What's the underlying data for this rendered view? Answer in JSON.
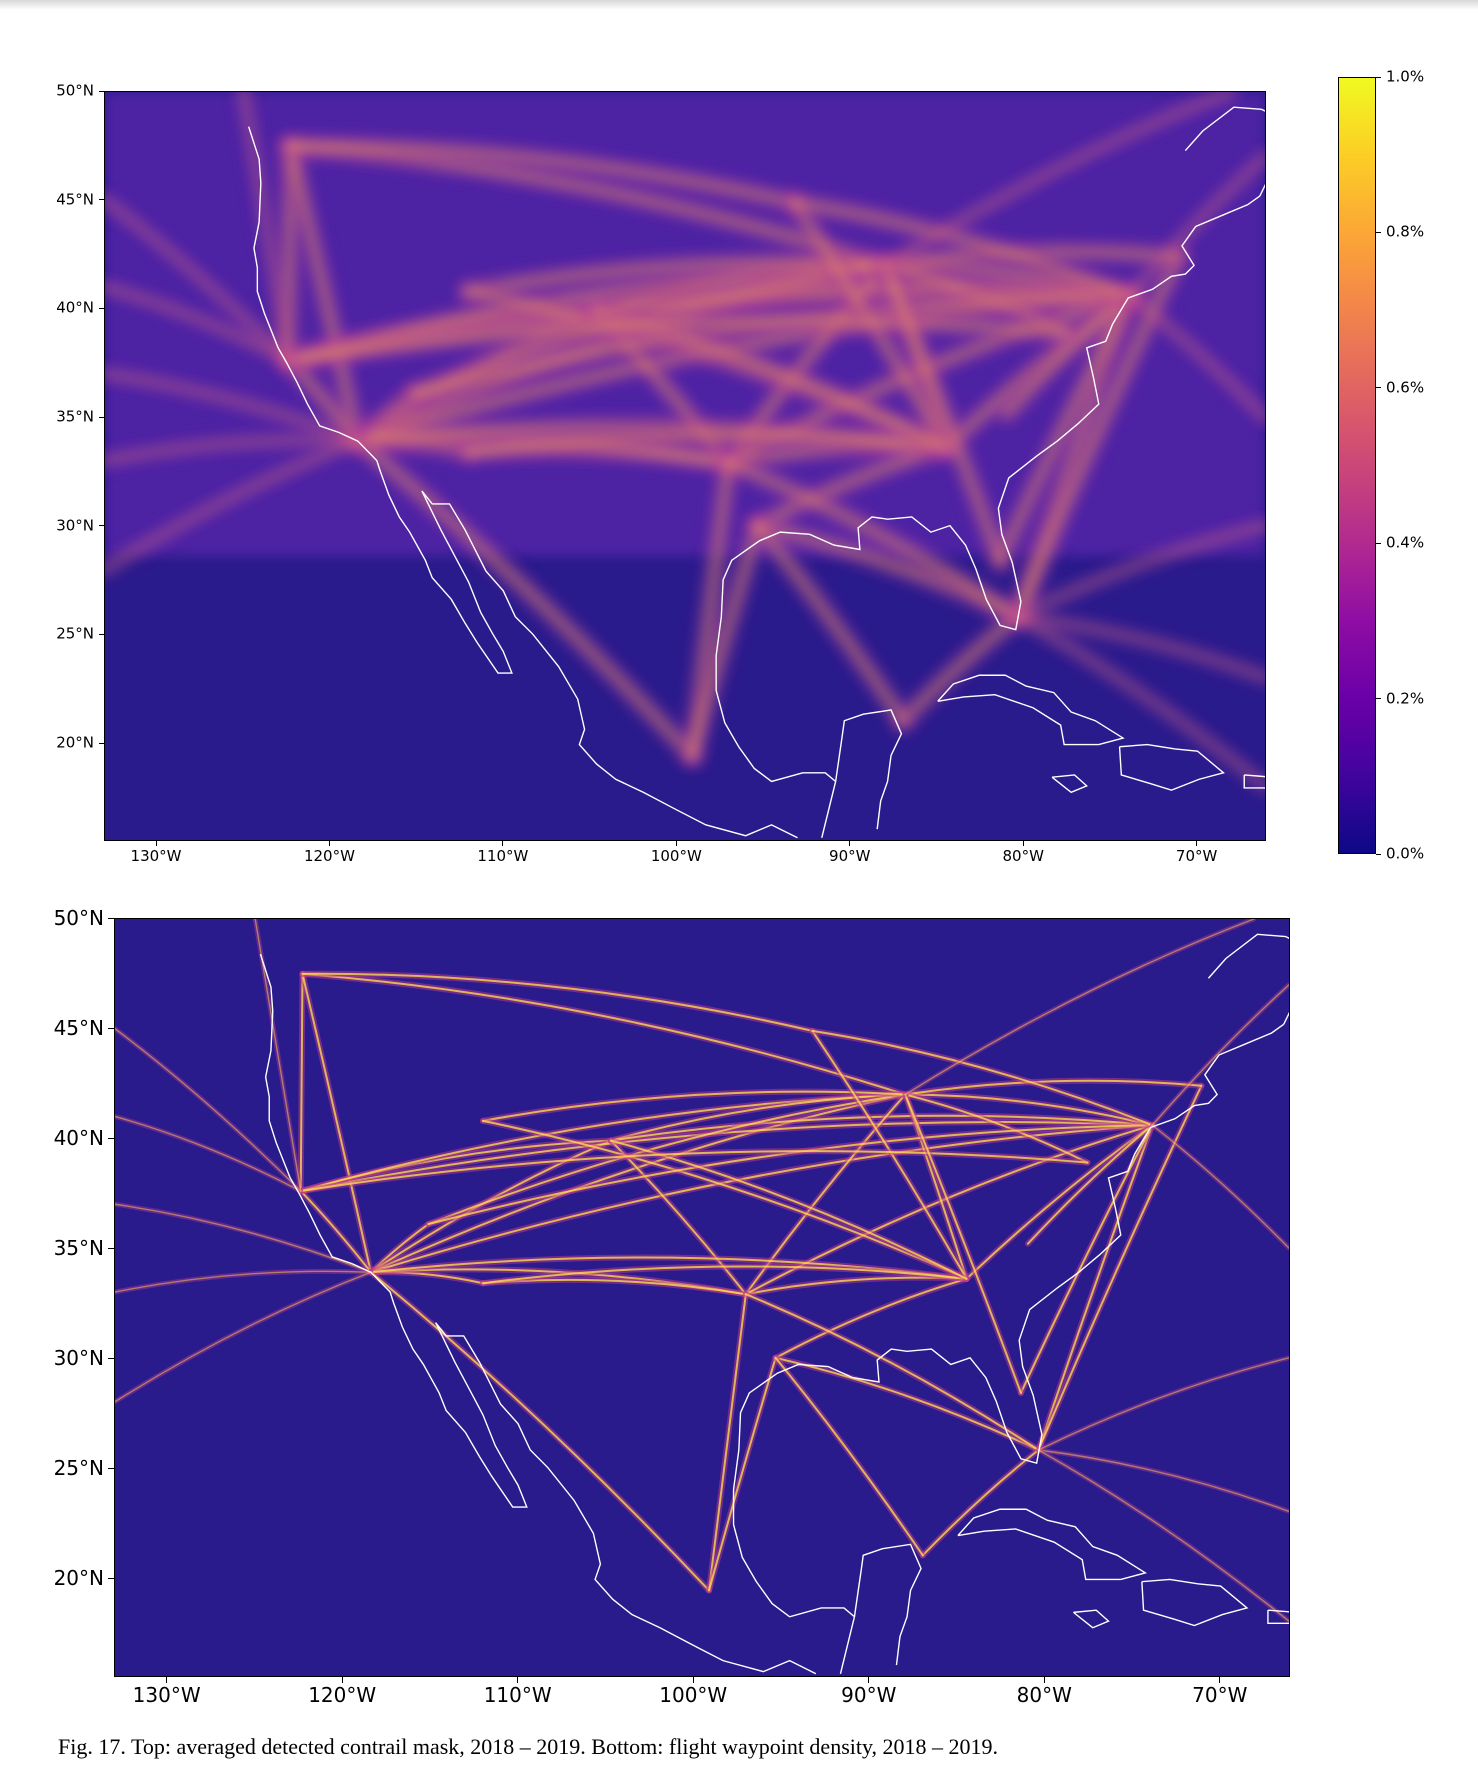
{
  "figure": {
    "caption": "Fig. 17.  Top: averaged detected contrail mask, 2018 – 2019. Bottom: flight waypoint density, 2018 – 2019."
  },
  "maps": [
    {
      "name": "averaged detected contrail mask, 2018 – 2019",
      "lon_range": [
        -133,
        -66
      ],
      "lat_range": [
        15.5,
        50
      ],
      "background_color": "#2a1b8c",
      "coastline_color": "#ffffff",
      "lat_ticks": [
        50,
        45,
        40,
        35,
        30,
        25,
        20
      ],
      "lat_tick_labels": [
        "50°N",
        "45°N",
        "40°N",
        "35°N",
        "30°N",
        "25°N",
        "20°N"
      ],
      "lon_ticks": [
        -130,
        -120,
        -110,
        -100,
        -90,
        -80,
        -70
      ],
      "lon_tick_labels": [
        "130°W",
        "120°W",
        "110°W",
        "100°W",
        "90°W",
        "80°W",
        "70°W"
      ],
      "colorbar": {
        "range": [
          0.0,
          1.0
        ],
        "ticks": [
          0.0,
          0.2,
          0.4,
          0.6,
          0.8,
          1.0
        ],
        "tick_labels": [
          "0.0%",
          "0.2%",
          "0.4%",
          "0.6%",
          "0.8%",
          "1.0%"
        ],
        "colormap": "plasma"
      }
    },
    {
      "name": "flight waypoint density, 2018 – 2019",
      "lon_range": [
        -133,
        -66
      ],
      "lat_range": [
        15.5,
        50
      ],
      "background_color": "#2a1b8c",
      "coastline_color": "#ffffff",
      "lat_ticks": [
        50,
        45,
        40,
        35,
        30,
        25,
        20
      ],
      "lat_tick_labels": [
        "50°N",
        "45°N",
        "40°N",
        "35°N",
        "30°N",
        "25°N",
        "20°N"
      ],
      "lon_ticks": [
        -130,
        -120,
        -110,
        -100,
        -90,
        -80,
        -70
      ],
      "lon_tick_labels": [
        "130°W",
        "120°W",
        "110°W",
        "100°W",
        "90°W",
        "80°W",
        "70°W"
      ]
    }
  ]
}
